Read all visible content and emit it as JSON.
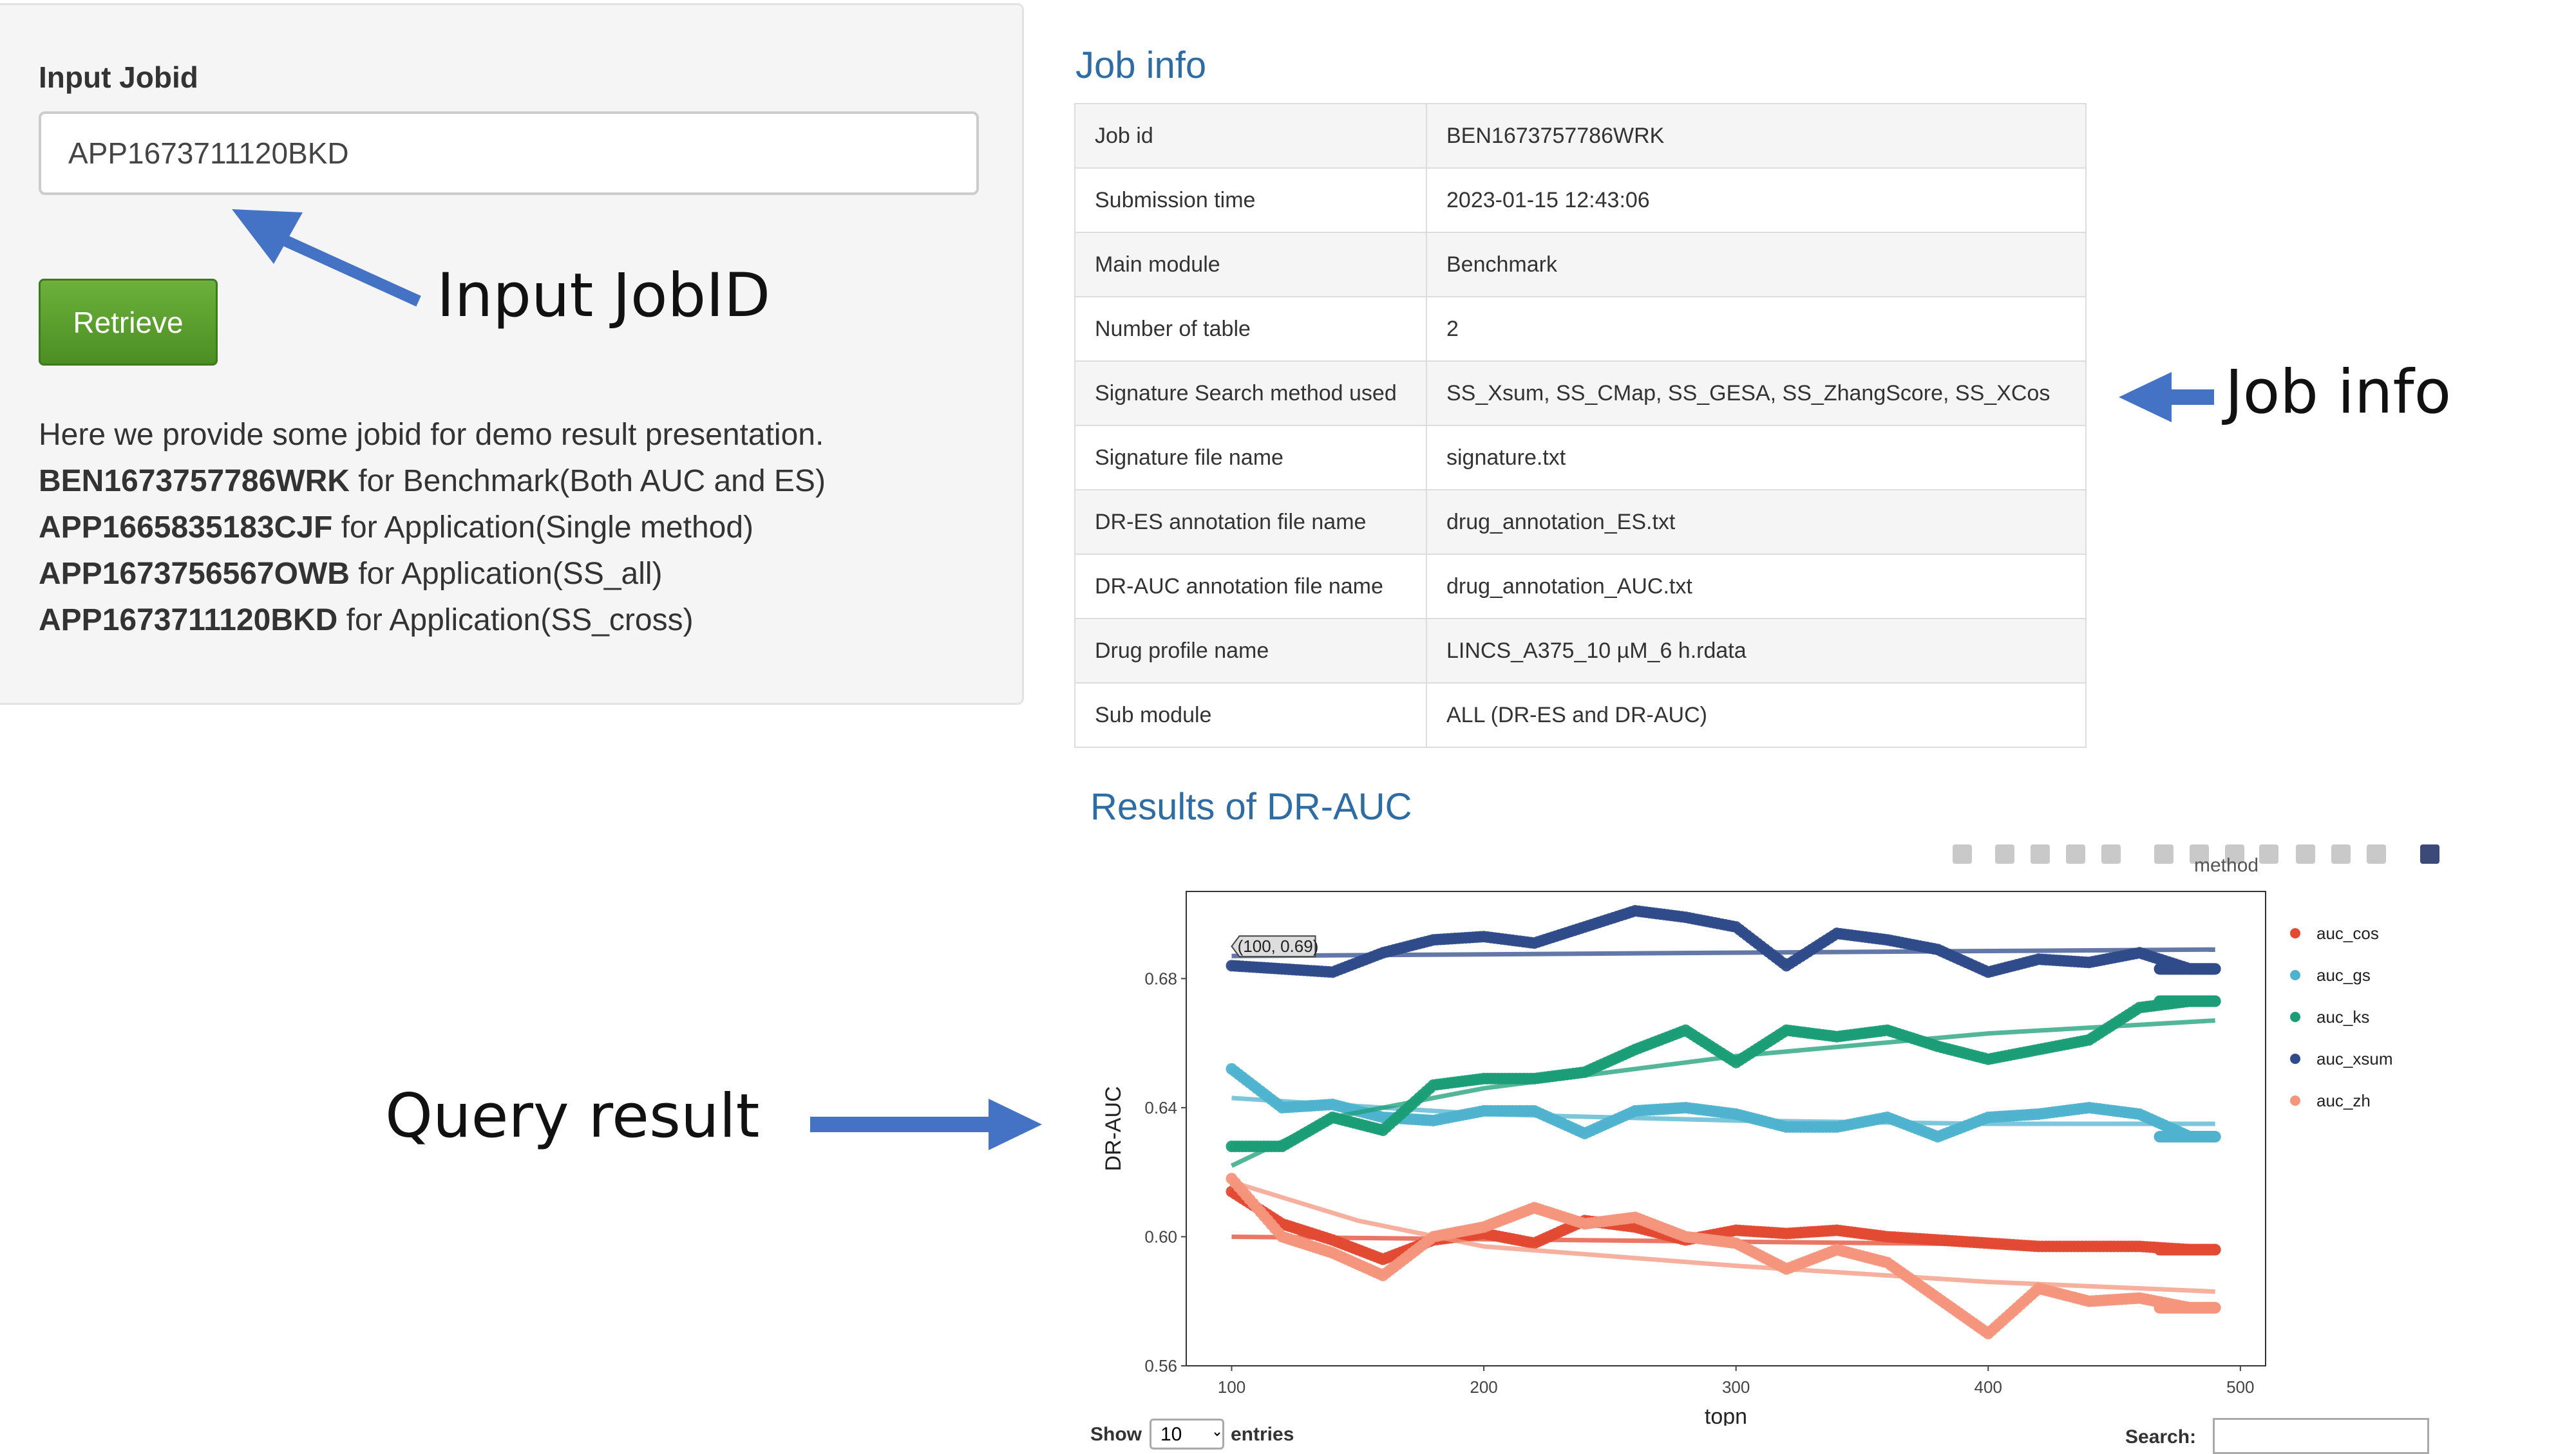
{
  "form": {
    "label": "Input Jobid",
    "input_value": "APP1673711120BKD",
    "button_label": "Retrieve",
    "demo_intro": "Here we provide some jobid for demo result presentation.",
    "demo_lines": [
      {
        "id": "BEN1673757786WRK",
        "desc": " for Benchmark(Both AUC and ES)"
      },
      {
        "id": "APP1665835183CJF",
        "desc": " for Application(Single method)"
      },
      {
        "id": "APP1673756567OWB",
        "desc": " for Application(SS_all)"
      },
      {
        "id": "APP1673711120BKD",
        "desc": " for Application(SS_cross)"
      }
    ]
  },
  "annotations": {
    "input": "Input JobID",
    "jobinfo": "Job info",
    "query": "Query result"
  },
  "job_info": {
    "title": "Job info",
    "rows": [
      {
        "key": "Job id",
        "value": "BEN1673757786WRK"
      },
      {
        "key": "Submission time",
        "value": "2023-01-15 12:43:06"
      },
      {
        "key": "Main module",
        "value": "Benchmark"
      },
      {
        "key": "Number of table",
        "value": "2"
      },
      {
        "key": "Signature Search method used",
        "value": "SS_Xsum, SS_CMap, SS_GESA, SS_ZhangScore, SS_XCos"
      },
      {
        "key": "Signature file name",
        "value": "signature.txt"
      },
      {
        "key": "DR-ES annotation file name",
        "value": "drug_annotation_ES.txt"
      },
      {
        "key": "DR-AUC annotation file name",
        "value": "drug_annotation_AUC.txt"
      },
      {
        "key": "Drug profile name",
        "value": "LINCS_A375_10 µM_6 h.rdata"
      },
      {
        "key": "Sub module",
        "value": "ALL (DR-ES and DR-AUC)"
      }
    ]
  },
  "results": {
    "title": "Results of DR-AUC",
    "show_label": "Show",
    "show_value": "10",
    "entries_label": "entries",
    "search_label": "Search:"
  },
  "chart_data": {
    "type": "scatter",
    "xlabel": "topn",
    "ylabel": "DR-AUC",
    "xlim": [
      82,
      510
    ],
    "ylim": [
      0.56,
      0.707
    ],
    "xticks": [
      100,
      200,
      300,
      400,
      500
    ],
    "yticks": [
      0.56,
      0.6,
      0.64,
      0.68
    ],
    "legend_title": "method",
    "legend_position": "right",
    "tooltip": "(100, 0.69)",
    "series": [
      {
        "name": "auc_cos",
        "color": "#e34a33",
        "points": [
          [
            100,
            0.614
          ],
          [
            120,
            0.604
          ],
          [
            140,
            0.599
          ],
          [
            160,
            0.593
          ],
          [
            180,
            0.599
          ],
          [
            200,
            0.601
          ],
          [
            220,
            0.598
          ],
          [
            240,
            0.605
          ],
          [
            260,
            0.603
          ],
          [
            280,
            0.599
          ],
          [
            300,
            0.602
          ],
          [
            320,
            0.601
          ],
          [
            340,
            0.602
          ],
          [
            360,
            0.6
          ],
          [
            380,
            0.599
          ],
          [
            400,
            0.598
          ],
          [
            420,
            0.597
          ],
          [
            440,
            0.597
          ],
          [
            460,
            0.597
          ],
          [
            480,
            0.596
          ],
          [
            490,
            0.596
          ]
        ],
        "trend": [
          [
            100,
            0.6
          ],
          [
            490,
            0.597
          ]
        ]
      },
      {
        "name": "auc_gs",
        "color": "#4fb3cf",
        "points": [
          [
            100,
            0.652
          ],
          [
            120,
            0.64
          ],
          [
            140,
            0.641
          ],
          [
            160,
            0.637
          ],
          [
            180,
            0.636
          ],
          [
            200,
            0.639
          ],
          [
            220,
            0.639
          ],
          [
            240,
            0.632
          ],
          [
            260,
            0.639
          ],
          [
            280,
            0.64
          ],
          [
            300,
            0.638
          ],
          [
            320,
            0.634
          ],
          [
            340,
            0.634
          ],
          [
            360,
            0.637
          ],
          [
            380,
            0.631
          ],
          [
            400,
            0.637
          ],
          [
            420,
            0.638
          ],
          [
            440,
            0.64
          ],
          [
            460,
            0.638
          ],
          [
            480,
            0.631
          ],
          [
            490,
            0.631
          ]
        ],
        "trend": [
          [
            100,
            0.643
          ],
          [
            200,
            0.638
          ],
          [
            300,
            0.636
          ],
          [
            400,
            0.635
          ],
          [
            490,
            0.635
          ]
        ]
      },
      {
        "name": "auc_ks",
        "color": "#1b9e77",
        "points": [
          [
            100,
            0.628
          ],
          [
            120,
            0.628
          ],
          [
            140,
            0.637
          ],
          [
            160,
            0.633
          ],
          [
            180,
            0.647
          ],
          [
            200,
            0.649
          ],
          [
            220,
            0.649
          ],
          [
            240,
            0.651
          ],
          [
            260,
            0.658
          ],
          [
            280,
            0.664
          ],
          [
            300,
            0.654
          ],
          [
            320,
            0.664
          ],
          [
            340,
            0.662
          ],
          [
            360,
            0.664
          ],
          [
            380,
            0.659
          ],
          [
            400,
            0.655
          ],
          [
            420,
            0.658
          ],
          [
            440,
            0.661
          ],
          [
            460,
            0.671
          ],
          [
            480,
            0.673
          ],
          [
            490,
            0.673
          ]
        ],
        "trend": [
          [
            100,
            0.622
          ],
          [
            140,
            0.637
          ],
          [
            200,
            0.646
          ],
          [
            300,
            0.656
          ],
          [
            400,
            0.663
          ],
          [
            490,
            0.667
          ]
        ]
      },
      {
        "name": "auc_xsum",
        "color": "#2f4b8a",
        "points": [
          [
            100,
            0.684
          ],
          [
            120,
            0.683
          ],
          [
            140,
            0.682
          ],
          [
            160,
            0.688
          ],
          [
            180,
            0.692
          ],
          [
            200,
            0.693
          ],
          [
            220,
            0.691
          ],
          [
            240,
            0.696
          ],
          [
            260,
            0.701
          ],
          [
            280,
            0.699
          ],
          [
            300,
            0.696
          ],
          [
            320,
            0.684
          ],
          [
            340,
            0.694
          ],
          [
            360,
            0.692
          ],
          [
            380,
            0.689
          ],
          [
            400,
            0.682
          ],
          [
            420,
            0.686
          ],
          [
            440,
            0.685
          ],
          [
            460,
            0.688
          ],
          [
            480,
            0.683
          ],
          [
            490,
            0.683
          ]
        ],
        "trend": [
          [
            100,
            0.687
          ],
          [
            490,
            0.689
          ]
        ]
      },
      {
        "name": "auc_zh",
        "color": "#f4957c",
        "points": [
          [
            100,
            0.618
          ],
          [
            120,
            0.6
          ],
          [
            140,
            0.595
          ],
          [
            160,
            0.588
          ],
          [
            180,
            0.6
          ],
          [
            200,
            0.603
          ],
          [
            220,
            0.609
          ],
          [
            240,
            0.604
          ],
          [
            260,
            0.606
          ],
          [
            280,
            0.6
          ],
          [
            300,
            0.598
          ],
          [
            320,
            0.59
          ],
          [
            340,
            0.596
          ],
          [
            360,
            0.592
          ],
          [
            380,
            0.581
          ],
          [
            400,
            0.57
          ],
          [
            420,
            0.584
          ],
          [
            440,
            0.58
          ],
          [
            460,
            0.581
          ],
          [
            480,
            0.578
          ],
          [
            490,
            0.578
          ]
        ],
        "trend": [
          [
            100,
            0.617
          ],
          [
            150,
            0.605
          ],
          [
            200,
            0.597
          ],
          [
            300,
            0.591
          ],
          [
            400,
            0.586
          ],
          [
            490,
            0.583
          ]
        ]
      }
    ]
  }
}
